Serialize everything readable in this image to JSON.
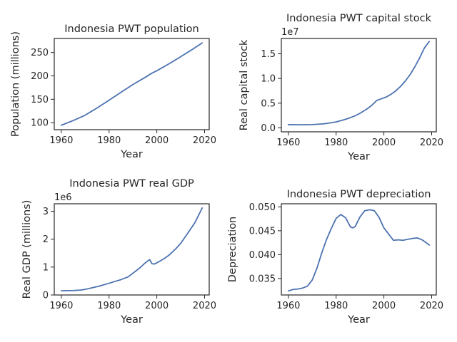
{
  "chart_data": [
    {
      "type": "line",
      "title": "Indonesia PWT population",
      "xlabel": "Year",
      "ylabel": "Population (millions)",
      "offset_text": "",
      "xlim": [
        1957.05,
        2021.95
      ],
      "ylim": [
        85,
        280
      ],
      "xticks": [
        1960,
        1980,
        2000,
        2020
      ],
      "xtick_labels": [
        "1960",
        "1980",
        "2000",
        "2020"
      ],
      "yticks": [
        100,
        150,
        200,
        250
      ],
      "ytick_labels": [
        "100",
        "150",
        "200",
        "250"
      ],
      "grid": false,
      "color": "#4c72b0",
      "x": [
        1960,
        1965,
        1970,
        1975,
        1980,
        1985,
        1990,
        1995,
        1998,
        2000,
        2005,
        2010,
        2015,
        2019
      ],
      "y": [
        94.5,
        104.5,
        116,
        131.5,
        148,
        165,
        181.5,
        196.5,
        206,
        211,
        225.5,
        241,
        257,
        270.5
      ]
    },
    {
      "type": "line",
      "title": "Indonesia PWT capital stock",
      "xlabel": "Year",
      "ylabel": "Real capital stock",
      "offset_text": "1e7",
      "xlim": [
        1957.05,
        2021.95
      ],
      "ylim": [
        -0.08,
        1.81
      ],
      "xticks": [
        1960,
        1980,
        2000,
        2020
      ],
      "xtick_labels": [
        "1960",
        "1980",
        "2000",
        "2020"
      ],
      "yticks": [
        0.0,
        0.5,
        1.0,
        1.5
      ],
      "ytick_labels": [
        "0.0",
        "0.5",
        "1.0",
        "1.5"
      ],
      "grid": false,
      "color": "#4c72b0",
      "x": [
        1960,
        1965,
        1970,
        1975,
        1980,
        1983,
        1985,
        1988,
        1990,
        1993,
        1995,
        1997,
        1999,
        2001,
        2003,
        2005,
        2007,
        2009,
        2011,
        2013,
        2015,
        2017,
        2019
      ],
      "y": [
        0.065,
        0.063,
        0.066,
        0.082,
        0.12,
        0.16,
        0.19,
        0.245,
        0.295,
        0.385,
        0.46,
        0.555,
        0.59,
        0.625,
        0.68,
        0.75,
        0.84,
        0.95,
        1.08,
        1.24,
        1.42,
        1.62,
        1.75
      ]
    },
    {
      "type": "line",
      "title": "Indonesia PWT real GDP",
      "xlabel": "Year",
      "ylabel": "Real GDP (millions)",
      "offset_text": "1e6",
      "xlim": [
        1957.05,
        2021.95
      ],
      "ylim": [
        0,
        3.27
      ],
      "xticks": [
        1960,
        1980,
        2000,
        2020
      ],
      "xtick_labels": [
        "1960",
        "1980",
        "2000",
        "2020"
      ],
      "yticks": [
        0,
        1,
        2,
        3
      ],
      "ytick_labels": [
        "0",
        "1",
        "2",
        "3"
      ],
      "grid": false,
      "color": "#4c72b0",
      "x": [
        1960,
        1965,
        1968,
        1970,
        1973,
        1976,
        1980,
        1983,
        1985,
        1988,
        1990,
        1993,
        1995,
        1997,
        1998,
        1999,
        2001,
        2003,
        2005,
        2008,
        2010,
        2013,
        2016,
        2019
      ],
      "y": [
        0.15,
        0.16,
        0.175,
        0.2,
        0.26,
        0.32,
        0.42,
        0.5,
        0.55,
        0.65,
        0.78,
        0.98,
        1.14,
        1.27,
        1.12,
        1.11,
        1.2,
        1.3,
        1.42,
        1.66,
        1.85,
        2.22,
        2.6,
        3.12
      ]
    },
    {
      "type": "line",
      "title": "Indonesia PWT depreciation",
      "xlabel": "Year",
      "ylabel": "Depreciation",
      "offset_text": "",
      "xlim": [
        1957.05,
        2021.95
      ],
      "ylim": [
        0.03155,
        0.05065
      ],
      "xticks": [
        1960,
        1980,
        2000,
        2020
      ],
      "xtick_labels": [
        "1960",
        "1980",
        "2000",
        "2020"
      ],
      "yticks": [
        0.035,
        0.04,
        0.045,
        0.05
      ],
      "ytick_labels": [
        "0.035",
        "0.040",
        "0.045",
        "0.050"
      ],
      "grid": false,
      "color": "#4c72b0",
      "x": [
        1960,
        1962,
        1964,
        1966,
        1968,
        1970,
        1972,
        1974,
        1976,
        1978,
        1980,
        1982,
        1984,
        1986,
        1987,
        1988,
        1990,
        1992,
        1994,
        1996,
        1998,
        2000,
        2002,
        2004,
        2006,
        2008,
        2010,
        2012,
        2014,
        2016,
        2018,
        2019
      ],
      "y": [
        0.0324,
        0.0327,
        0.0328,
        0.033,
        0.0334,
        0.0347,
        0.0372,
        0.0404,
        0.0432,
        0.0455,
        0.0476,
        0.0484,
        0.0477,
        0.0458,
        0.0456,
        0.0459,
        0.0479,
        0.0492,
        0.0494,
        0.0492,
        0.0478,
        0.0456,
        0.0443,
        0.043,
        0.0431,
        0.043,
        0.0432,
        0.0434,
        0.0435,
        0.0431,
        0.0424,
        0.042
      ]
    }
  ]
}
